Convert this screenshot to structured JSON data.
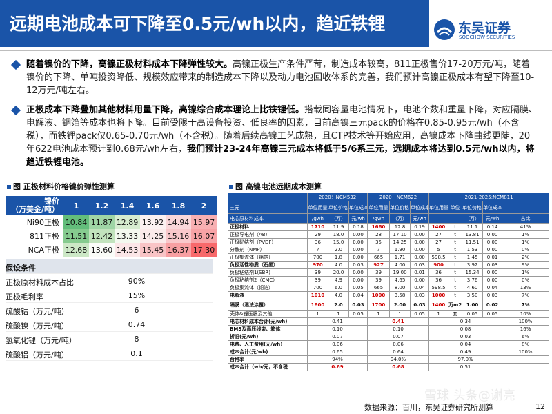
{
  "title": "远期电池成本可下降至0.5元/wh以内，趋近铁锂",
  "logo": {
    "cn": "东吴证券",
    "en": "SOOCHOW SECURITIES"
  },
  "para1": {
    "bold": "随着镍价的下降，高镍正极材料成本下降弹性较大。",
    "text": "高镍正极生产条件严苛，制造成本较高，811正极售价17-20万元/吨，随着镍价的下降、单吨投资降低、规模效应带来的制造成本下降以及动力电池回收体系的完善，我们预计高镍正极成本有望下降至10-12万元/吨左右。"
  },
  "para2": {
    "bold1": "正极成本下降叠加其他材料用量下降，高镍综合成本理论上比铁锂低。",
    "text": "搭载同容量电池情况下，电池个数和重量下降，对应隔膜、电解液、铜箔等成本也将下降。目前受限于高设备投资、低良率的因素，目前高镍三元pack的价格在0.85-0.95元/wh（不含税），而铁锂pack仅0.65-0.70元/wh（不含税）。随着后续高镍工艺成熟，且CTP技术等开始应用，高镍成本下降曲线更陡，20年622电池成本预计到0.68元/wh左右，",
    "bold2": "我们预计23-24年高镍三元成本将低于5/6系三元，远期成本将达到0.5元/wh以内，将趋近铁锂电池。"
  },
  "left": {
    "caption": "图 正极材料价格镍价弹性测算",
    "corner_line1": "镍价",
    "corner_line2": "（万美金/吨）",
    "prices": [
      "1",
      "1.2",
      "1.4",
      "1.6",
      "1.8",
      "2"
    ],
    "rows": [
      {
        "label": "Ni90正极",
        "values": [
          "10.84",
          "11.87",
          "12.89",
          "13.92",
          "14.94",
          "15.97"
        ]
      },
      {
        "label": "811正极",
        "values": [
          "11.51",
          "12.42",
          "13.33",
          "14.25",
          "15.16",
          "16.07"
        ]
      },
      {
        "label": "NCA正极",
        "values": [
          "12.68",
          "13.60",
          "14.53",
          "15.45",
          "16.37",
          "17.30"
        ]
      }
    ],
    "assumptions_title": "假设条件",
    "assumptions": [
      {
        "k": "正极原材料成本占比",
        "v": "90%"
      },
      {
        "k": "正极毛利率",
        "v": "15%"
      },
      {
        "k": "硫酸钴（万元/吨）",
        "v": "6"
      },
      {
        "k": "硫酸镍（万元/吨）",
        "v": "0.74"
      },
      {
        "k": "氢氧化锂（万元/吨）",
        "v": "8"
      },
      {
        "k": "硫酸铝（万元/吨）",
        "v": "0.1"
      }
    ]
  },
  "right": {
    "caption": "图 高镍电池远期成本测算",
    "groups": [
      "2020：NCM532",
      "2020：NCM622",
      "2021-2025:NCM811"
    ],
    "col_label": "三元",
    "sub_label": "电芯原材料成本",
    "hdr1": [
      "单位用量",
      "单位价格（万）",
      "单位成本",
      "单位用量",
      "单位价格（万）",
      "单位成本",
      "单位用量",
      "单位",
      "单位价格（万）",
      "单位成本",
      ""
    ],
    "hdr2": [
      "/gwh",
      "（万）",
      "元/wh",
      "/gwh",
      "（万）",
      "元/wh",
      "",
      "",
      "（万）",
      "元/wh",
      "占比"
    ],
    "rows": [
      {
        "c": [
          "正极材料",
          "1710",
          "11.9",
          "0.18",
          "1660",
          "12.8",
          "0.19",
          "1400",
          "t",
          "11.1",
          "0.14",
          "41%"
        ],
        "red": [
          1,
          4,
          7
        ],
        "bold": true
      },
      {
        "c": [
          "正极导电剂（AB）",
          "29",
          "18.0",
          "0.00",
          "28",
          "17.10",
          "0.00",
          "27",
          "t",
          "13.81",
          "0.00",
          "1%"
        ]
      },
      {
        "c": [
          "正极黏结剂（PVDF）",
          "36",
          "15.0",
          "0.00",
          "35",
          "14.25",
          "0.00",
          "27",
          "t",
          "11.51",
          "0.00",
          "1%"
        ]
      },
      {
        "c": [
          "分散剂（NMP）",
          "7",
          "2.0",
          "0.00",
          "7",
          "1.90",
          "0.00",
          "5",
          "t",
          "1.53",
          "0.00",
          "0%"
        ]
      },
      {
        "c": [
          "正极集流体（铝箔）",
          "700",
          "1.8",
          "0.00",
          "665",
          "1.71",
          "0.00",
          "598.5",
          "t",
          "1.45",
          "0.01",
          "2%"
        ]
      },
      {
        "c": [
          "负极活性物质（石墨）",
          "970",
          "4.0",
          "0.03",
          "927",
          "4.00",
          "0.03",
          "900",
          "t",
          "3.92",
          "0.03",
          "9%"
        ],
        "red": [
          1,
          4,
          7
        ],
        "bold": true
      },
      {
        "c": [
          "负极粘结剂1(SBR)",
          "39",
          "20.0",
          "0.00",
          "39",
          "19.00",
          "0.01",
          "36",
          "t",
          "15.34",
          "0.00",
          "1%"
        ]
      },
      {
        "c": [
          "负极粘结剂2（CMC）",
          "39",
          "4.9",
          "0.00",
          "39",
          "4.65",
          "0.00",
          "36",
          "t",
          "3.76",
          "0.00",
          "0%"
        ]
      },
      {
        "c": [
          "负极集流体（铜箔）",
          "700",
          "6.0",
          "0.05",
          "665",
          "8.00",
          "0.04",
          "598.5",
          "t",
          "4.60",
          "0.04",
          "13%"
        ]
      },
      {
        "c": [
          "电解液",
          "1010",
          "4.0",
          "0.04",
          "1000",
          "3.58",
          "0.03",
          "1000",
          "t",
          "3.50",
          "0.03",
          "7%"
        ],
        "red": [
          1,
          4,
          7
        ],
        "bold": true
      }
    ],
    "sep": {
      "c": [
        "隔膜（湿法涂覆）",
        "1800",
        "2.0",
        "0.03",
        "1700",
        "2.00",
        "0.03",
        "1400",
        "万m2",
        "1.00",
        "0.02",
        "7%"
      ],
      "red": [
        1,
        4,
        7
      ]
    },
    "shell": {
      "c": [
        "壳体&锂压膜及其他",
        "1",
        "1",
        "0.05",
        "1",
        "1",
        "0.05",
        "1",
        "套",
        "0.05",
        "0.05",
        "10%"
      ]
    },
    "totals": [
      {
        "l": "电芯材料成本合计(元/wh)",
        "a": "0.41",
        "b": "0.41",
        "c": "0.34",
        "d": "100%",
        "bred": true
      },
      {
        "l": "BMS及高压线束、箱体",
        "a": "0.10",
        "b": "0.10",
        "c": "0.08",
        "d": "16%"
      },
      {
        "l": "折旧(元/wh)",
        "a": "0.07",
        "b": "0.07",
        "c": "0.03",
        "d": "6%"
      },
      {
        "l": "电费、人工费用(元/wh)",
        "a": "0.06",
        "b": "0.06",
        "c": "0.04",
        "d": "8%"
      },
      {
        "l": "成本合计(元/wh)",
        "a": "0.65",
        "b": "0.64",
        "c": "0.49",
        "d": "100%"
      },
      {
        "l": "合格率",
        "a": "94%",
        "b": "94.0%",
        "c": "97.0%",
        "d": ""
      },
      {
        "l": "成本合计（wh/元，不含税",
        "a": "0.69",
        "b": "0.68",
        "c": "0.51",
        "d": "",
        "ared": true,
        "bred": true
      }
    ]
  },
  "source": "数据来源：百川，东吴证券研究所测算",
  "page": "12",
  "watermark": "雪球 头条@谢亮"
}
